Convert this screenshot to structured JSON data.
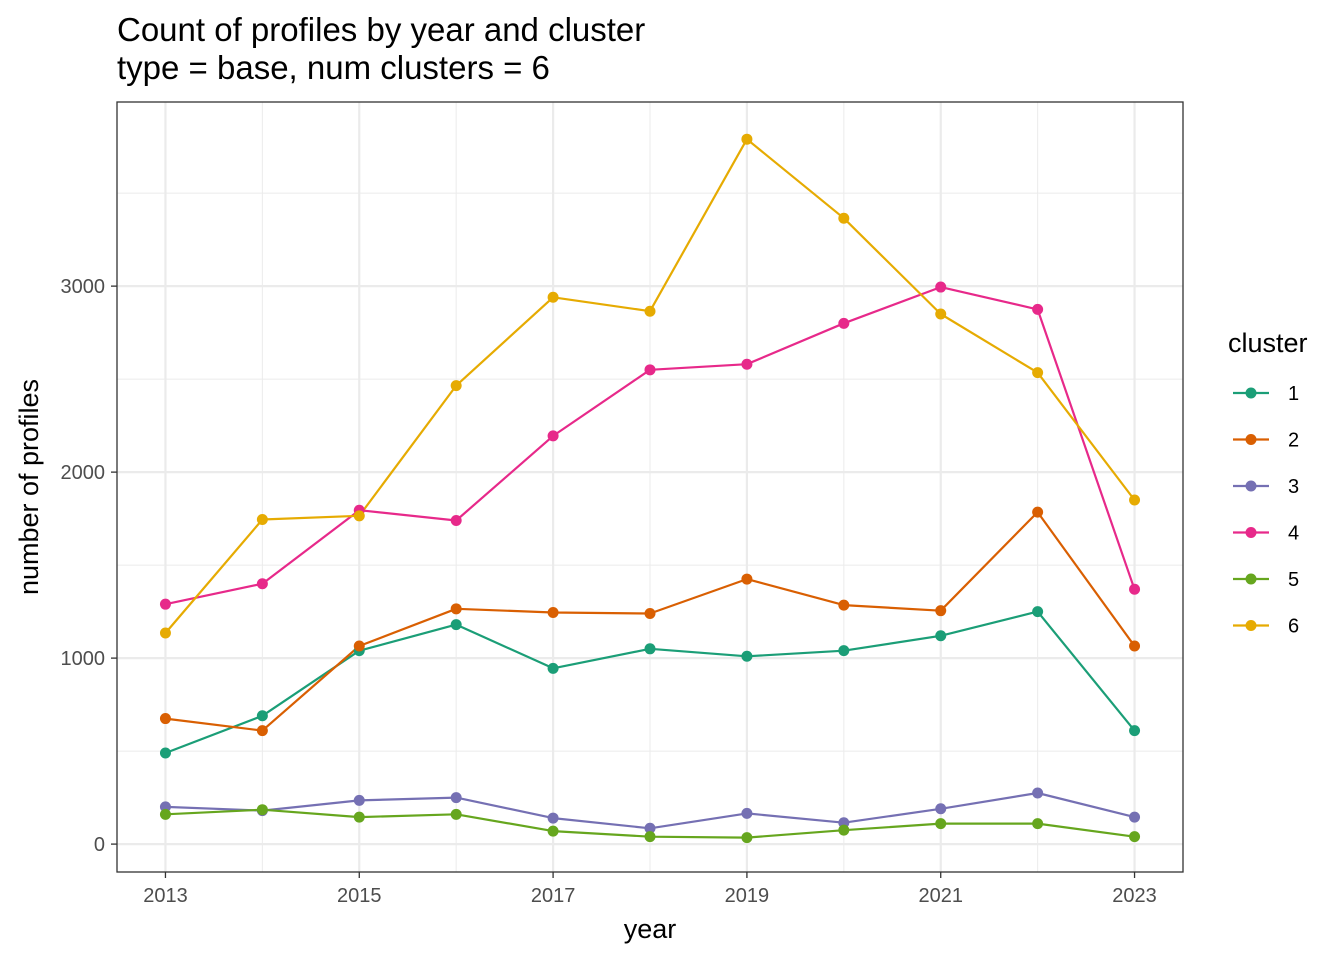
{
  "chart_data": {
    "type": "line",
    "title": "Count of profiles by year and cluster",
    "subtitle": "type = base, num clusters = 6",
    "xlabel": "year",
    "ylabel": "number of profiles",
    "x": [
      2013,
      2014,
      2015,
      2016,
      2017,
      2018,
      2019,
      2020,
      2021,
      2022,
      2023
    ],
    "x_ticks": [
      "2013",
      "2015",
      "2017",
      "2019",
      "2021",
      "2023"
    ],
    "y_ticks": [
      "0",
      "1000",
      "2000",
      "3000"
    ],
    "xlim": [
      2012.5,
      2023.5
    ],
    "ylim": [
      -150,
      3990
    ],
    "grid": true,
    "legend": {
      "title": "cluster",
      "position": "right"
    },
    "series": [
      {
        "name": "1",
        "color": "#1b9e77",
        "values": [
          490,
          690,
          1040,
          1180,
          945,
          1050,
          1010,
          1040,
          1120,
          1250,
          610
        ]
      },
      {
        "name": "2",
        "color": "#d95f02",
        "values": [
          675,
          610,
          1065,
          1265,
          1245,
          1240,
          1425,
          1285,
          1255,
          1785,
          1065
        ]
      },
      {
        "name": "3",
        "color": "#7570b3",
        "values": [
          200,
          180,
          235,
          250,
          140,
          85,
          165,
          115,
          190,
          275,
          145
        ]
      },
      {
        "name": "4",
        "color": "#e7298a",
        "values": [
          1290,
          1400,
          1795,
          1740,
          2195,
          2550,
          2580,
          2800,
          2995,
          2875,
          1370
        ]
      },
      {
        "name": "5",
        "color": "#66a61e",
        "values": [
          160,
          185,
          145,
          160,
          70,
          40,
          35,
          75,
          110,
          110,
          40
        ]
      },
      {
        "name": "6",
        "color": "#e6ab02",
        "values": [
          1135,
          1745,
          1765,
          2465,
          2940,
          2865,
          3790,
          3365,
          2850,
          2535,
          1850
        ]
      }
    ]
  }
}
